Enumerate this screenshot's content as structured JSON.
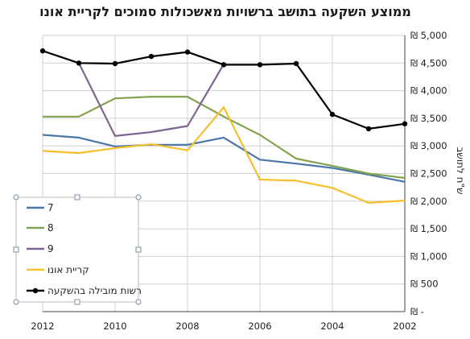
{
  "chart_data": {
    "type": "line",
    "title": "ממוצע השקעה בתושב ברשויות מאשכולות סמוכים לקריית אונו",
    "ylabel": "ש\"ח לתושב",
    "xlabel": "",
    "x": [
      2002,
      2003,
      2004,
      2005,
      2006,
      2007,
      2008,
      2009,
      2010,
      2011,
      2012
    ],
    "x_ticks": [
      2002,
      2004,
      2006,
      2008,
      2010,
      2012
    ],
    "x_reversed": true,
    "ylim": [
      0,
      5000
    ],
    "y_ticks": [
      0,
      500,
      1000,
      1500,
      2000,
      2500,
      3000,
      3500,
      4000,
      4500,
      5000
    ],
    "y_tick_labels": [
      "₪ -",
      "₪ 500",
      "₪ 1,000",
      "₪ 1,500",
      "₪ 2,000",
      "₪ 2,500",
      "₪ 3,000",
      "₪ 3,500",
      "₪ 4,000",
      "₪ 4,500",
      "₪ 5,000"
    ],
    "y_axis_position": "right",
    "grid": true,
    "legend_position": "left",
    "series": [
      {
        "name": "7",
        "color": "#4a76a8",
        "markers": false,
        "values": [
          2350,
          2480,
          2600,
          2680,
          2750,
          3150,
          3020,
          3020,
          2990,
          3150,
          3200
        ]
      },
      {
        "name": "8",
        "color": "#82a34e",
        "markers": false,
        "values": [
          2420,
          2500,
          2640,
          2770,
          3200,
          3530,
          3890,
          3890,
          3860,
          3530,
          3530
        ]
      },
      {
        "name": "9",
        "color": "#7f6595",
        "markers": false,
        "values": [
          null,
          null,
          null,
          null,
          null,
          4480,
          3360,
          3250,
          3180,
          4500,
          null
        ]
      },
      {
        "name": "קריית אונו",
        "color": "#f5c02c",
        "markers": false,
        "values": [
          2010,
          1970,
          2240,
          2370,
          2390,
          3700,
          2920,
          3030,
          2960,
          2870,
          2910
        ]
      },
      {
        "name": "רשות מובילה בהשקעה",
        "color": "#000000",
        "markers": true,
        "values": [
          3400,
          3310,
          3570,
          4490,
          4470,
          4470,
          4700,
          4620,
          4490,
          4500,
          4720
        ]
      }
    ]
  }
}
